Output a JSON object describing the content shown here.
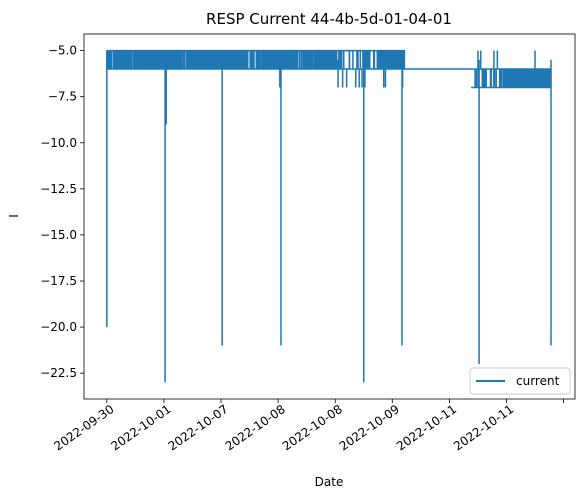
{
  "chart_data": {
    "type": "line",
    "title": "RESP Current 44-4b-5d-01-04-01",
    "xlabel": "Date",
    "ylabel": "I",
    "ylim": [
      -23.9,
      -4.1
    ],
    "yticks": [
      -5.0,
      -7.5,
      -10.0,
      -12.5,
      -15.0,
      -17.5,
      -20.0,
      -22.5
    ],
    "ytick_labels": [
      "−5.0",
      "−7.5",
      "−10.0",
      "−12.5",
      "−15.0",
      "−17.5",
      "−20.0",
      "−22.5"
    ],
    "xlim": [
      -0.4,
      8.2
    ],
    "xtick_labels": [
      "2022-09-30",
      "2022-10-01",
      "2022-10-07",
      "2022-10-08",
      "2022-10-08",
      "2022-10-09",
      "2022-10-11",
      "2022-10-11"
    ],
    "legend": {
      "position": "lower-right",
      "entries": [
        "current"
      ]
    },
    "series": [
      {
        "name": "current",
        "color": "#1f77b4",
        "segments": [
          {
            "x_start": 0.0,
            "x_end": 1.02,
            "band": [
              -5.0,
              -6.0
            ],
            "density": 170
          },
          {
            "x_start": 1.02,
            "x_end": 1.97,
            "band": [
              -5.0,
              -6.0
            ],
            "density": 140
          },
          {
            "x_start": 1.97,
            "x_end": 3.38,
            "band": [
              -5.0,
              -6.0
            ],
            "density": 200
          },
          {
            "x_start": 3.38,
            "x_end": 4.1,
            "band": [
              -5.0,
              -6.0
            ],
            "density": 60
          },
          {
            "x_start": 4.1,
            "x_end": 4.78,
            "band": [
              -5.0,
              -6.0
            ],
            "density": 18
          },
          {
            "x_start": 4.78,
            "x_end": 5.22,
            "band": [
              -5.0,
              -6.0
            ],
            "density": 70
          },
          {
            "x_start": 5.22,
            "x_end": 6.38,
            "band": [
              -6.0,
              -6.0
            ],
            "density": 0
          },
          {
            "x_start": 6.38,
            "x_end": 6.95,
            "band": [
              -6.0,
              -7.0
            ],
            "density": 12
          },
          {
            "x_start": 6.95,
            "x_end": 7.78,
            "band": [
              -6.0,
              -7.0
            ],
            "density": 150
          }
        ],
        "spikes": [
          {
            "x": 0.0,
            "value": -20.0
          },
          {
            "x": 1.02,
            "value": -23.0
          },
          {
            "x": 1.04,
            "value": -9.0
          },
          {
            "x": 2.02,
            "value": -21.0
          },
          {
            "x": 3.05,
            "value": -21.0
          },
          {
            "x": 4.5,
            "value": -23.0
          },
          {
            "x": 5.17,
            "value": -21.0
          },
          {
            "x": 6.52,
            "value": -22.0
          },
          {
            "x": 7.78,
            "value": -21.0
          },
          {
            "x": 3.03,
            "value": -7.0
          },
          {
            "x": 4.05,
            "value": -7.0
          },
          {
            "x": 5.18,
            "value": -7.0
          }
        ],
        "notches": [
          {
            "x": 4.13,
            "value": -7.0
          },
          {
            "x": 4.2,
            "value": -7.0
          },
          {
            "x": 4.36,
            "value": -7.0
          },
          {
            "x": 4.42,
            "value": -7.0
          },
          {
            "x": 4.47,
            "value": -7.0
          },
          {
            "x": 4.52,
            "value": -7.0
          },
          {
            "x": 4.85,
            "value": -7.0
          },
          {
            "x": 4.88,
            "value": -7.0
          },
          {
            "x": 6.45,
            "value": -7.0
          },
          {
            "x": 6.5,
            "value": -7.0
          },
          {
            "x": 6.6,
            "value": -7.0
          },
          {
            "x": 6.72,
            "value": -7.0
          },
          {
            "x": 6.82,
            "value": -7.0
          },
          {
            "x": 6.88,
            "value": -7.0
          }
        ],
        "peaks": [
          {
            "x": 3.02,
            "value": -5.0
          },
          {
            "x": 4.15,
            "value": -5.0
          },
          {
            "x": 4.25,
            "value": -5.0
          },
          {
            "x": 4.38,
            "value": -5.0
          },
          {
            "x": 4.44,
            "value": -5.0
          },
          {
            "x": 4.5,
            "value": -5.0
          },
          {
            "x": 6.5,
            "value": -5.0
          },
          {
            "x": 6.55,
            "value": -5.0
          },
          {
            "x": 6.78,
            "value": -5.0
          },
          {
            "x": 6.84,
            "value": -5.0
          },
          {
            "x": 7.5,
            "value": -5.0
          }
        ]
      }
    ]
  }
}
